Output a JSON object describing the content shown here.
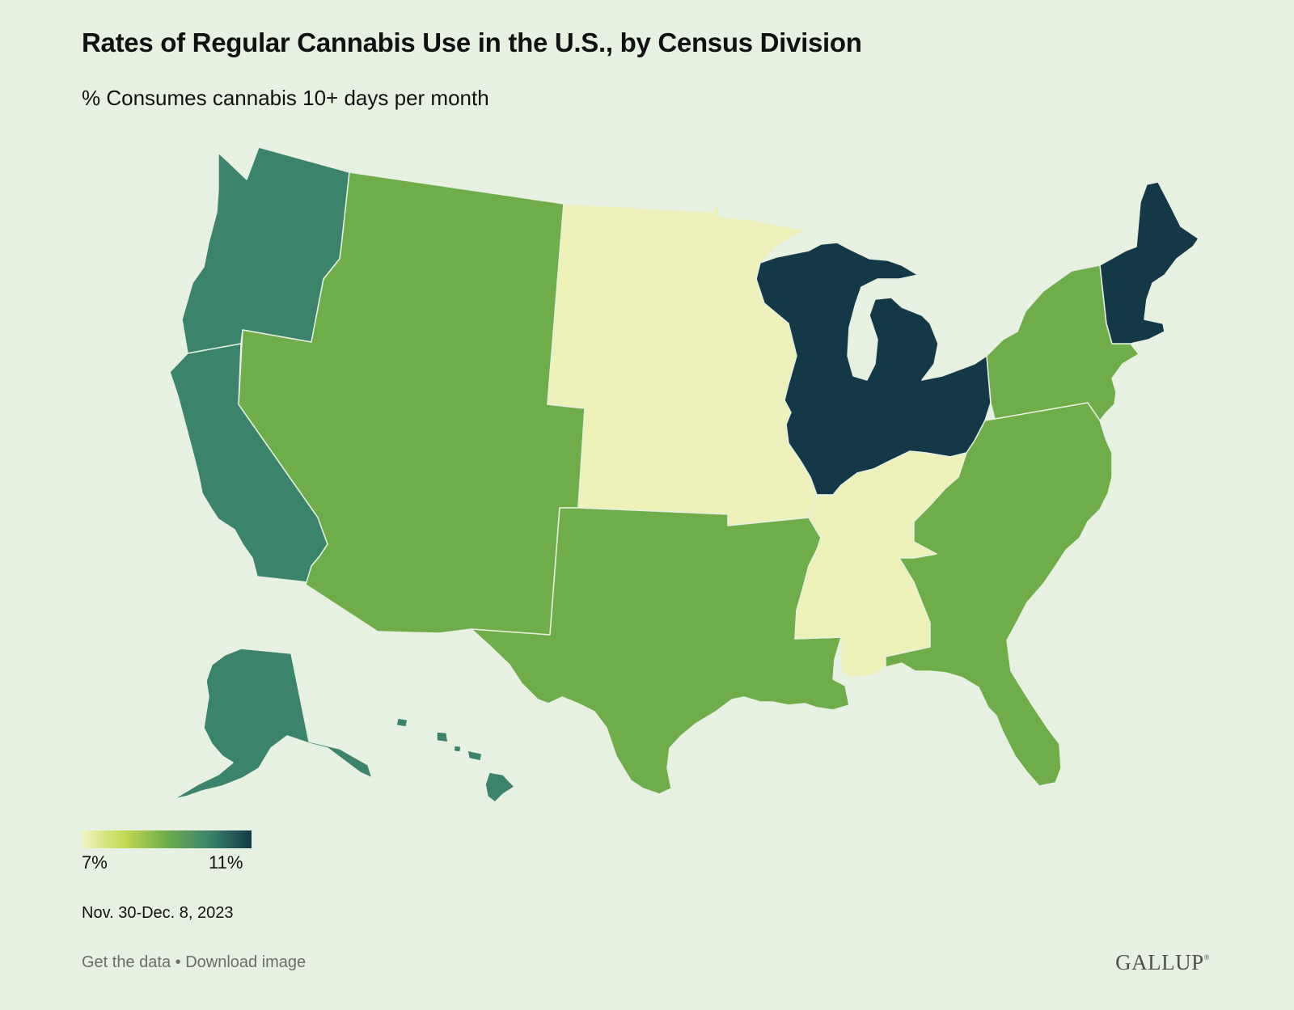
{
  "header": {
    "title": "Rates of Regular Cannabis Use in the U.S., by Census Division",
    "subtitle": "% Consumes cannabis 10+ days per month"
  },
  "legend": {
    "min_label": "7%",
    "max_label": "11%",
    "gradient_stops": [
      "#f0f2c0",
      "#c2da50",
      "#6fad4a",
      "#3b846b",
      "#133848"
    ]
  },
  "chart_data": {
    "type": "map",
    "scale_min": 7,
    "scale_max": 11,
    "color_levels": {
      "lowest": "#edf0b8",
      "low": "#6fac4a",
      "high": "#3b836b",
      "highest": "#133848"
    },
    "regions": [
      {
        "group": "Pacific",
        "states": [
          "WA",
          "OR",
          "CA",
          "AK",
          "HI"
        ],
        "level": "high"
      },
      {
        "group": "Mountain",
        "states": [
          "MT",
          "ID",
          "WY",
          "NV",
          "UT",
          "CO",
          "AZ",
          "NM"
        ],
        "level": "low"
      },
      {
        "group": "West North Central",
        "states": [
          "ND",
          "SD",
          "NE",
          "KS",
          "MN",
          "IA",
          "MO"
        ],
        "level": "lowest"
      },
      {
        "group": "West South Central",
        "states": [
          "TX",
          "OK",
          "AR",
          "LA"
        ],
        "level": "low"
      },
      {
        "group": "East North Central",
        "states": [
          "WI",
          "MI",
          "IL",
          "IN",
          "OH"
        ],
        "level": "highest"
      },
      {
        "group": "East South Central",
        "states": [
          "KY",
          "TN",
          "MS",
          "AL"
        ],
        "level": "lowest"
      },
      {
        "group": "South Atlantic",
        "states": [
          "WV",
          "VA",
          "NC",
          "SC",
          "GA",
          "FL",
          "MD",
          "DE",
          "DC"
        ],
        "level": "low"
      },
      {
        "group": "Middle Atlantic",
        "states": [
          "NY",
          "PA",
          "NJ"
        ],
        "level": "low"
      },
      {
        "group": "New England",
        "states": [
          "ME",
          "NH",
          "VT",
          "MA",
          "CT",
          "RI"
        ],
        "level": "highest"
      }
    ]
  },
  "footer": {
    "date": "Nov. 30-Dec. 8, 2023",
    "get_data": "Get the data",
    "separator": " • ",
    "download": "Download image",
    "logo": "GALLUP",
    "logo_mark": "®"
  }
}
